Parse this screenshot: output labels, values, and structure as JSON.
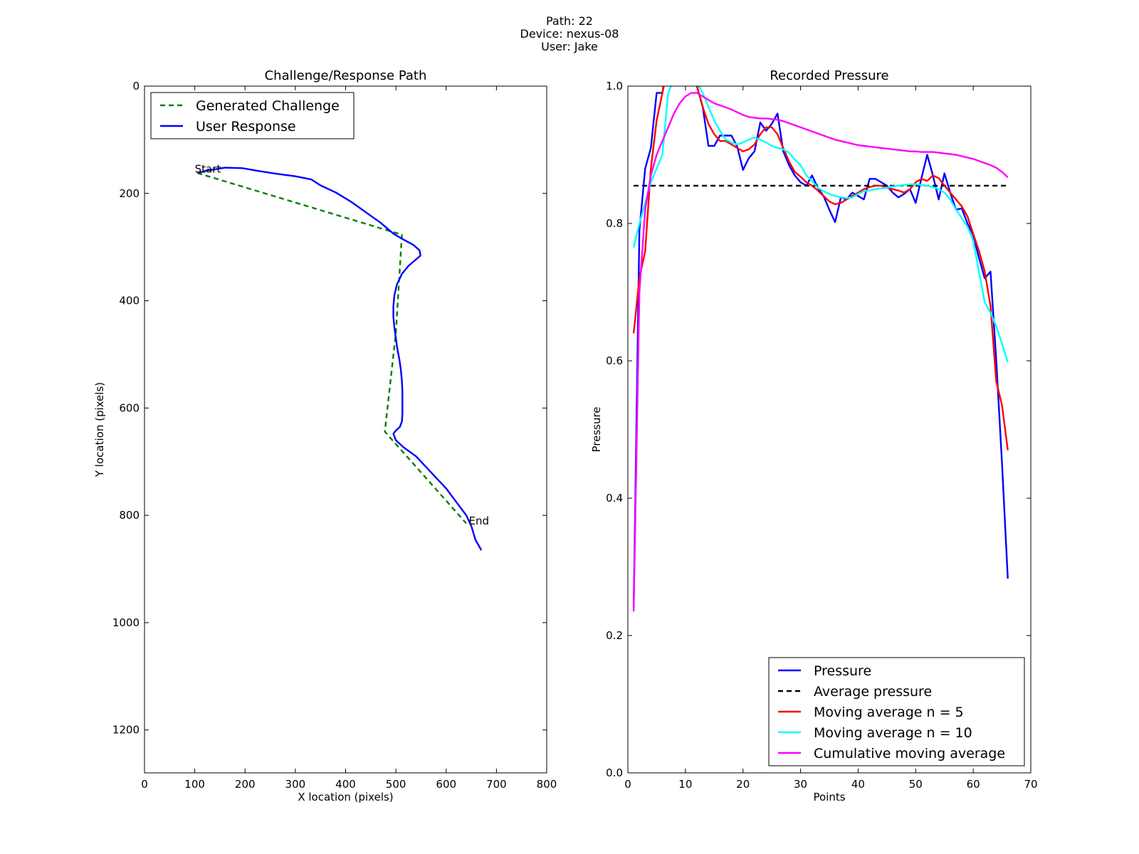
{
  "header": {
    "line1": "Path: 22",
    "line2": "Device: nexus-08",
    "line3": "User: Jake"
  },
  "chart_data": [
    {
      "type": "line",
      "title": "Challenge/Response Path",
      "xlabel": "X location (pixels)",
      "ylabel": "Y location (pixels)",
      "xlim": [
        0,
        800
      ],
      "ylim": [
        1280,
        0
      ],
      "y_inverted": true,
      "x_ticks": [
        0,
        100,
        200,
        300,
        400,
        500,
        600,
        700,
        800
      ],
      "y_ticks": [
        0,
        200,
        400,
        600,
        800,
        1000,
        1200
      ],
      "grid": false,
      "legend_position": "top-left",
      "series": [
        {
          "name": "Generated Challenge",
          "color": "#008000",
          "style": "dashed",
          "x": [
            105,
            512,
            500,
            478,
            640
          ],
          "y": [
            162,
            277,
            460,
            644,
            815
          ]
        },
        {
          "name": "User Response",
          "color": "#0000ff",
          "style": "solid",
          "x": [
            108,
            120,
            140,
            160,
            195,
            225,
            260,
            300,
            332,
            350,
            380,
            410,
            440,
            470,
            495,
            515,
            535,
            547,
            549,
            540,
            525,
            512,
            502,
            497,
            495,
            495,
            497,
            500,
            503,
            507,
            510,
            512,
            513,
            513,
            513,
            512,
            508,
            500,
            495,
            500,
            515,
            540,
            570,
            600,
            620,
            640,
            650,
            658,
            670
          ],
          "y": [
            162,
            158,
            155,
            152,
            153,
            158,
            163,
            168,
            174,
            185,
            198,
            215,
            235,
            255,
            275,
            286,
            296,
            306,
            316,
            323,
            335,
            350,
            370,
            390,
            410,
            430,
            450,
            470,
            490,
            510,
            530,
            550,
            570,
            590,
            610,
            625,
            635,
            642,
            648,
            660,
            673,
            690,
            720,
            750,
            775,
            800,
            820,
            845,
            865
          ]
        }
      ],
      "annotations": [
        {
          "text": "Start",
          "x": 100,
          "y": 152
        },
        {
          "text": "End",
          "x": 645,
          "y": 808
        }
      ]
    },
    {
      "type": "line",
      "title": "Recorded Pressure",
      "xlabel": "Points",
      "ylabel": "Pressure",
      "xlim": [
        0,
        70
      ],
      "ylim": [
        0.0,
        1.0
      ],
      "x_ticks": [
        0,
        10,
        20,
        30,
        40,
        50,
        60,
        70
      ],
      "y_ticks": [
        "0.0",
        "0.2",
        "0.4",
        "0.6",
        "0.8",
        "1.0"
      ],
      "grid": false,
      "legend_position": "bottom-right",
      "series": [
        {
          "name": "Pressure",
          "color": "#0000ff",
          "style": "solid",
          "x": [
            1,
            2,
            3,
            4,
            5,
            6,
            7,
            8,
            9,
            10,
            11,
            12,
            13,
            14,
            15,
            16,
            17,
            18,
            19,
            20,
            21,
            22,
            23,
            24,
            25,
            26,
            27,
            28,
            29,
            30,
            31,
            32,
            33,
            34,
            35,
            36,
            37,
            38,
            39,
            40,
            41,
            42,
            43,
            44,
            45,
            46,
            47,
            48,
            49,
            50,
            51,
            52,
            53,
            54,
            55,
            56,
            57,
            58,
            59,
            60,
            61,
            62,
            63,
            64,
            65,
            66
          ],
          "y": [
            0.24,
            0.79,
            0.88,
            0.91,
            0.99,
            0.99,
            1.05,
            1.05,
            1.05,
            1.05,
            1.05,
            1.0,
            0.97,
            0.913,
            0.913,
            0.928,
            0.928,
            0.928,
            0.912,
            0.878,
            0.895,
            0.905,
            0.947,
            0.935,
            0.945,
            0.96,
            0.905,
            0.885,
            0.87,
            0.86,
            0.855,
            0.87,
            0.852,
            0.84,
            0.82,
            0.802,
            0.838,
            0.835,
            0.845,
            0.84,
            0.835,
            0.865,
            0.865,
            0.86,
            0.855,
            0.845,
            0.838,
            0.843,
            0.85,
            0.83,
            0.866,
            0.9,
            0.87,
            0.835,
            0.873,
            0.845,
            0.82,
            0.822,
            0.8,
            0.783,
            0.75,
            0.72,
            0.73,
            0.6,
            0.45,
            0.283
          ]
        },
        {
          "name": "Average pressure",
          "color": "#000000",
          "style": "dashed",
          "x": [
            1,
            66
          ],
          "y": [
            0.855,
            0.855
          ]
        },
        {
          "name": "Moving average n = 5",
          "color": "#ff0000",
          "style": "solid",
          "x": [
            1,
            2,
            3,
            4,
            5,
            6,
            7,
            8,
            9,
            10,
            11,
            12,
            13,
            14,
            15,
            16,
            17,
            18,
            19,
            20,
            21,
            22,
            23,
            24,
            25,
            26,
            27,
            28,
            29,
            30,
            31,
            32,
            33,
            34,
            35,
            36,
            37,
            38,
            39,
            40,
            41,
            42,
            43,
            44,
            45,
            46,
            47,
            48,
            49,
            50,
            51,
            52,
            53,
            54,
            55,
            56,
            57,
            58,
            59,
            60,
            61,
            62,
            63,
            64,
            65,
            66
          ],
          "y": [
            0.64,
            0.72,
            0.76,
            0.88,
            0.95,
            0.99,
            1.03,
            1.05,
            1.05,
            1.05,
            1.03,
            1.0,
            0.97,
            0.945,
            0.93,
            0.92,
            0.92,
            0.915,
            0.91,
            0.905,
            0.908,
            0.915,
            0.93,
            0.94,
            0.94,
            0.93,
            0.91,
            0.89,
            0.875,
            0.868,
            0.86,
            0.855,
            0.848,
            0.84,
            0.832,
            0.828,
            0.83,
            0.835,
            0.84,
            0.845,
            0.85,
            0.853,
            0.855,
            0.855,
            0.852,
            0.85,
            0.848,
            0.845,
            0.85,
            0.86,
            0.865,
            0.862,
            0.87,
            0.866,
            0.855,
            0.845,
            0.835,
            0.825,
            0.81,
            0.785,
            0.76,
            0.73,
            0.68,
            0.57,
            0.535,
            0.47
          ]
        },
        {
          "name": "Moving average n = 10",
          "color": "#00ffff",
          "style": "solid",
          "x": [
            1,
            2,
            3,
            4,
            5,
            6,
            7,
            8,
            9,
            10,
            11,
            12,
            13,
            14,
            15,
            16,
            17,
            18,
            19,
            20,
            21,
            22,
            23,
            24,
            25,
            26,
            27,
            28,
            29,
            30,
            31,
            32,
            33,
            34,
            35,
            36,
            37,
            38,
            39,
            40,
            41,
            42,
            43,
            44,
            45,
            46,
            47,
            48,
            49,
            50,
            51,
            52,
            53,
            54,
            55,
            56,
            57,
            58,
            59,
            60,
            61,
            62,
            63,
            64,
            65,
            66
          ],
          "y": [
            0.765,
            0.8,
            0.83,
            0.86,
            0.88,
            0.9,
            0.99,
            1.01,
            1.02,
            1.02,
            1.02,
            1.005,
            0.99,
            0.97,
            0.95,
            0.935,
            0.922,
            0.918,
            0.915,
            0.918,
            0.922,
            0.925,
            0.922,
            0.918,
            0.913,
            0.91,
            0.908,
            0.903,
            0.893,
            0.885,
            0.87,
            0.862,
            0.852,
            0.847,
            0.843,
            0.84,
            0.838,
            0.837,
            0.838,
            0.843,
            0.847,
            0.848,
            0.85,
            0.851,
            0.852,
            0.854,
            0.855,
            0.856,
            0.857,
            0.857,
            0.856,
            0.855,
            0.853,
            0.85,
            0.845,
            0.835,
            0.82,
            0.808,
            0.795,
            0.775,
            0.73,
            0.685,
            0.67,
            0.65,
            0.625,
            0.598
          ]
        },
        {
          "name": "Cumulative moving average",
          "color": "#ff00ff",
          "style": "solid",
          "x": [
            1,
            2,
            3,
            4,
            5,
            6,
            7,
            8,
            9,
            10,
            11,
            12,
            13,
            14,
            15,
            16,
            17,
            18,
            19,
            20,
            21,
            22,
            23,
            24,
            25,
            26,
            27,
            28,
            29,
            30,
            31,
            32,
            33,
            34,
            35,
            36,
            37,
            38,
            39,
            40,
            41,
            42,
            43,
            44,
            45,
            46,
            47,
            48,
            49,
            50,
            51,
            52,
            53,
            54,
            55,
            56,
            57,
            58,
            59,
            60,
            61,
            62,
            63,
            64,
            65,
            66
          ],
          "y": [
            0.235,
            0.7,
            0.82,
            0.87,
            0.9,
            0.92,
            0.94,
            0.96,
            0.975,
            0.985,
            0.99,
            0.99,
            0.985,
            0.98,
            0.975,
            0.972,
            0.969,
            0.966,
            0.962,
            0.958,
            0.955,
            0.954,
            0.953,
            0.953,
            0.952,
            0.951,
            0.949,
            0.946,
            0.943,
            0.94,
            0.937,
            0.934,
            0.931,
            0.928,
            0.925,
            0.922,
            0.92,
            0.918,
            0.916,
            0.914,
            0.913,
            0.912,
            0.911,
            0.91,
            0.909,
            0.908,
            0.907,
            0.906,
            0.905,
            0.905,
            0.904,
            0.904,
            0.904,
            0.903,
            0.902,
            0.901,
            0.9,
            0.898,
            0.896,
            0.894,
            0.891,
            0.888,
            0.885,
            0.881,
            0.875,
            0.867
          ]
        }
      ]
    }
  ]
}
